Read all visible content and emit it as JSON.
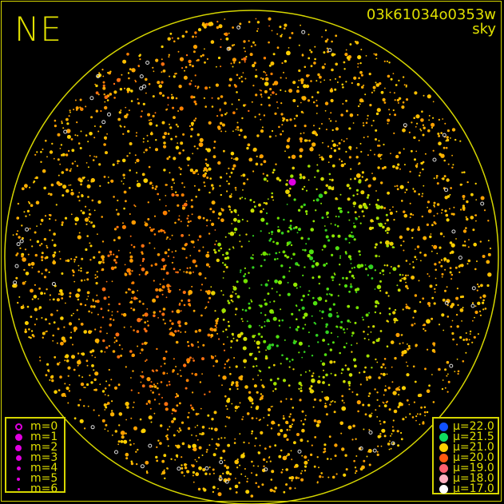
{
  "title": "NE",
  "observation_id": "03k61034o0353w",
  "subtitle": "sky",
  "magnitude_legend": [
    {
      "label": "m=0",
      "size": 9,
      "hollow": true
    },
    {
      "label": "m=1",
      "size": 9,
      "hollow": false
    },
    {
      "label": "m=2",
      "size": 8,
      "hollow": false
    },
    {
      "label": "m=3",
      "size": 7,
      "hollow": false
    },
    {
      "label": "m=4",
      "size": 5,
      "hollow": false
    },
    {
      "label": "m=5",
      "size": 4,
      "hollow": false
    },
    {
      "label": "m=6",
      "size": 3,
      "hollow": false
    }
  ],
  "sky_brightness_legend": [
    {
      "label": "μ=22.0",
      "color": "#1050ff"
    },
    {
      "label": "μ=21.5",
      "color": "#10dd60"
    },
    {
      "label": "μ=21.0",
      "color": "#ffd000"
    },
    {
      "label": "μ=20.0",
      "color": "#ff5a10"
    },
    {
      "label": "μ=19.0",
      "color": "#ff6070"
    },
    {
      "label": "μ=18.0",
      "color": "#ffb0c0"
    },
    {
      "label": "μ=17.0",
      "color": "#ffffff"
    }
  ],
  "colors": {
    "frame": "#d6d600",
    "text": "#e0e000",
    "magnitude_symbol": "#e000e0"
  }
}
